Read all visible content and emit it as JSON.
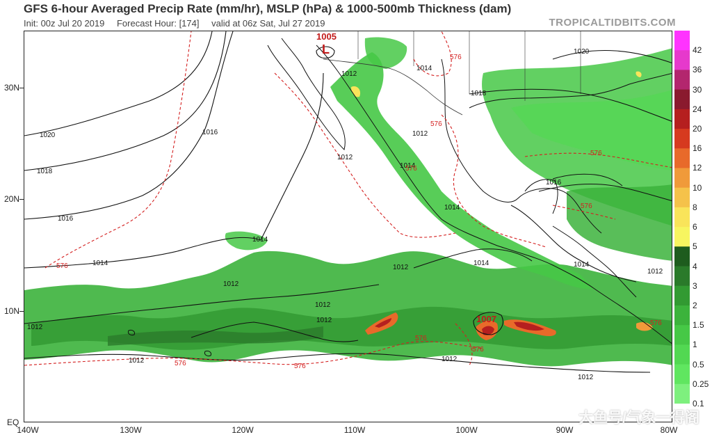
{
  "header": {
    "title": "GFS 6-hour Averaged Precip Rate (mm/hr), MSLP (hPa) & 1000-500mb Thickness (dam)",
    "init": "Init: 00z Jul 20 2019",
    "forecast_hour": "Forecast Hour: [174]",
    "valid": "valid at 06z Sat, Jul 27 2019",
    "brand": "TROPICALTIDBITS.COM"
  },
  "watermark": "大鱼号/气象一得阁",
  "axes": {
    "lat_labels": [
      "30N",
      "20N",
      "10N",
      "EQ"
    ],
    "lon_labels": [
      "140W",
      "130W",
      "120W",
      "110W",
      "100W",
      "90W",
      "80W"
    ]
  },
  "colorbar": {
    "labels": [
      "42",
      "36",
      "30",
      "24",
      "20",
      "16",
      "12",
      "10",
      "8",
      "6",
      "5",
      "4",
      "3",
      "2",
      "1.5",
      "1",
      "0.5",
      "0.25",
      "0.1"
    ],
    "colors": [
      "#ff33ff",
      "#e639cc",
      "#b3266e",
      "#8a1a2e",
      "#b51f1f",
      "#d63a1f",
      "#e86a2a",
      "#f09a3a",
      "#f5c24a",
      "#f9e45a",
      "#f7f560",
      "#1e5c1e",
      "#2a7a2a",
      "#329a32",
      "#3cb33c",
      "#46c846",
      "#52d852",
      "#60e660",
      "#7ef07e"
    ]
  },
  "pressure": {
    "highs_lows": [
      {
        "label": "1005",
        "symbol": "L"
      },
      {
        "label": "1007",
        "symbol": ""
      }
    ],
    "isobar_labels": [
      "1020",
      "1018",
      "1016",
      "1014",
      "1012",
      "1012",
      "1012",
      "1014",
      "1016",
      "1014",
      "1012",
      "1012",
      "1012",
      "1014",
      "1014",
      "1018",
      "1020",
      "1012",
      "1014",
      "1012",
      "1014",
      "1012",
      "1012",
      "1012",
      "1016",
      "1012"
    ],
    "thickness_labels": [
      "576",
      "576",
      "576",
      "576",
      "576",
      "576",
      "576",
      "576",
      "576",
      "576",
      "576"
    ]
  }
}
